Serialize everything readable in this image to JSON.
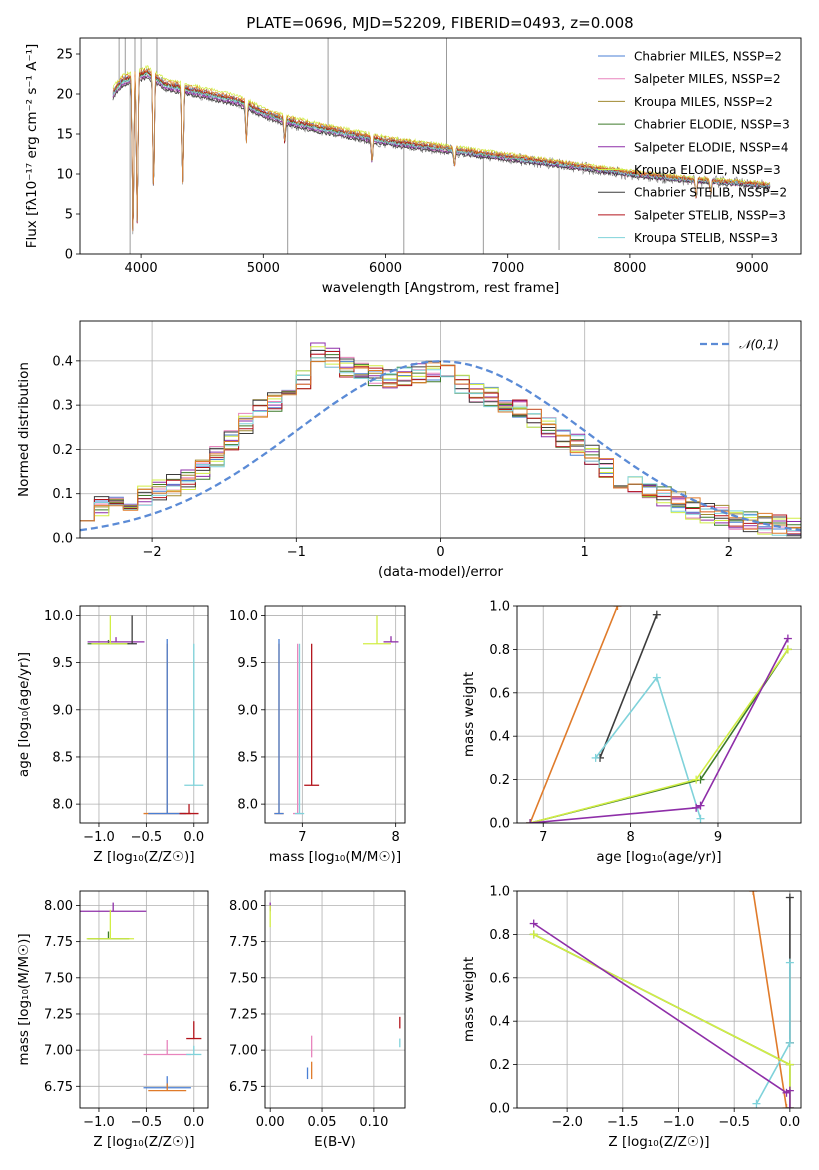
{
  "title": "PLATE=0696, MJD=52209, FIBERID=0493, z=0.008",
  "colors": {
    "Chabrier MILES": "#4a7fd4",
    "Salpeter MILES": "#e884bd",
    "Kroupa MILES": "#a08a30",
    "Chabrier ELODIE": "#3d7a2a",
    "Salpeter ELODIE": "#8e2ea8",
    "Kroupa ELODIE": "#d2ee45",
    "Chabrier STELIB": "#3c3c3c",
    "Salpeter STELIB": "#b3141c",
    "Kroupa STELIB": "#7fd2da",
    "data": "#808080",
    "orange": "#e07b2a",
    "gaussian": "#5b8bd6"
  },
  "chart_data": [
    {
      "id": "spectrum",
      "type": "line",
      "xlabel": "wavelength [Angstrom, rest frame]",
      "ylabel": "Flux [fλ10⁻¹⁷ erg cm⁻² s⁻¹ A⁻¹]",
      "xlim": [
        3500,
        9400
      ],
      "ylim": [
        0,
        27
      ],
      "xticks": [
        4000,
        5000,
        6000,
        7000,
        8000,
        9000
      ],
      "yticks": [
        0,
        5,
        10,
        15,
        20,
        25
      ],
      "legend_position": "top-right",
      "legend": [
        {
          "label": "Chabrier MILES, NSSP=2",
          "color": "#4a7fd4"
        },
        {
          "label": "Salpeter MILES, NSSP=2",
          "color": "#e884bd"
        },
        {
          "label": "Kroupa MILES, NSSP=2",
          "color": "#a08a30"
        },
        {
          "label": "Chabrier ELODIE, NSSP=3",
          "color": "#3d7a2a"
        },
        {
          "label": "Salpeter ELODIE, NSSP=4",
          "color": "#8e2ea8"
        },
        {
          "label": "Kroupa ELODIE, NSSP=3",
          "color": "#d2ee45"
        },
        {
          "label": "Chabrier STELIB, NSSP=2",
          "color": "#3c3c3c"
        },
        {
          "label": "Salpeter STELIB, NSSP=3",
          "color": "#b3141c"
        },
        {
          "label": "Kroupa STELIB, NSSP=3",
          "color": "#7fd2da"
        }
      ],
      "continuum": [
        [
          3770,
          20
        ],
        [
          3850,
          21.5
        ],
        [
          3950,
          22
        ],
        [
          4050,
          22.5
        ],
        [
          4200,
          21
        ],
        [
          4500,
          20
        ],
        [
          4800,
          19
        ],
        [
          5000,
          17.5
        ],
        [
          5200,
          16.5
        ],
        [
          5500,
          15.5
        ],
        [
          6000,
          14
        ],
        [
          6500,
          13
        ],
        [
          7000,
          12
        ],
        [
          7500,
          11
        ],
        [
          8000,
          10
        ],
        [
          8500,
          9.2
        ],
        [
          9000,
          8.7
        ],
        [
          9150,
          8.5
        ]
      ],
      "absorption_dips": [
        [
          3934,
          2
        ],
        [
          3968,
          4
        ],
        [
          4102,
          8
        ],
        [
          4340,
          9
        ],
        [
          4861,
          14
        ],
        [
          5175,
          14
        ],
        [
          5890,
          11.5
        ],
        [
          6563,
          11
        ],
        [
          8542,
          7
        ],
        [
          8662,
          7.5
        ]
      ],
      "spikes": [
        [
          3820,
          27
        ],
        [
          3870,
          27
        ],
        [
          3910,
          0
        ],
        [
          3950,
          27
        ],
        [
          4000,
          27
        ],
        [
          4130,
          27
        ],
        [
          5200,
          0
        ],
        [
          5530,
          27
        ],
        [
          6150,
          0
        ],
        [
          6500,
          27
        ],
        [
          6800,
          0
        ],
        [
          7420,
          0.5
        ]
      ]
    },
    {
      "id": "residuals",
      "type": "line",
      "xlabel": "(data-model)/error",
      "ylabel": "Normed distribution",
      "xlim": [
        -2.5,
        2.5
      ],
      "ylim": [
        0,
        0.49
      ],
      "xticks": [
        -2,
        -1,
        0,
        1,
        2
      ],
      "yticks": [
        0.0,
        0.1,
        0.2,
        0.3,
        0.4
      ],
      "legend": [
        {
          "label": "𝒩(0,1)",
          "color": "#5b8bd6",
          "style": "dashed"
        }
      ],
      "legend_position": "top-right",
      "gaussian": {
        "mu": 0,
        "sigma": 1
      },
      "histogram_shape": [
        [
          -2.5,
          0.06
        ],
        [
          -2.2,
          0.08
        ],
        [
          -2.0,
          0.1
        ],
        [
          -1.7,
          0.14
        ],
        [
          -1.5,
          0.2
        ],
        [
          -1.3,
          0.28
        ],
        [
          -1.0,
          0.33
        ],
        [
          -0.85,
          0.42
        ],
        [
          -0.6,
          0.38
        ],
        [
          -0.4,
          0.36
        ],
        [
          -0.2,
          0.37
        ],
        [
          0.0,
          0.38
        ],
        [
          0.2,
          0.33
        ],
        [
          0.5,
          0.3
        ],
        [
          0.8,
          0.24
        ],
        [
          1.0,
          0.2
        ],
        [
          1.2,
          0.14
        ],
        [
          1.5,
          0.1
        ],
        [
          1.8,
          0.06
        ],
        [
          2.1,
          0.04
        ],
        [
          2.5,
          0.02
        ]
      ]
    },
    {
      "id": "age_vs_Z",
      "type": "scatter",
      "xlabel": "Z [log₁₀(Z/Z☉)]",
      "ylabel": "age  [log₁₀(age/yr)]",
      "xlim": [
        -1.2,
        0.15
      ],
      "ylim": [
        7.8,
        10.1
      ],
      "xticks": [
        -1.0,
        -0.5,
        0.0
      ],
      "yticks": [
        8.0,
        8.5,
        9.0,
        9.5,
        10.0
      ],
      "points": [
        {
          "x": -0.9,
          "y": 9.7,
          "color": "#3d7a2a",
          "xerr": 0.22,
          "yerr": 0.04
        },
        {
          "x": -0.82,
          "y": 9.72,
          "color": "#8e2ea8",
          "xerr": 0.3,
          "yerr": 0.05
        },
        {
          "x": -0.88,
          "y": 9.7,
          "color": "#d2ee45",
          "xerr": 0.2,
          "yerr": 0.3
        },
        {
          "x": -0.65,
          "y": 9.7,
          "color": "#3c3c3c",
          "xerr": 0.05,
          "yerr": 0.3
        },
        {
          "x": -0.28,
          "y": 7.9,
          "color": "#e07b2a",
          "xerr": 0.25,
          "yerr": 1.8
        },
        {
          "x": -0.28,
          "y": 7.9,
          "color": "#4a7fd4",
          "xerr": 0.2,
          "yerr": 1.85
        },
        {
          "x": 0.0,
          "y": 8.2,
          "color": "#7fd2da",
          "xerr": 0.1,
          "yerr": 1.5
        },
        {
          "x": -0.05,
          "y": 7.9,
          "color": "#b3141c",
          "xerr": 0.1,
          "yerr": 0.1
        }
      ]
    },
    {
      "id": "age_vs_mass",
      "type": "scatter",
      "xlabel": "mass [log₁₀(M/M☉)]",
      "ylabel": "",
      "xlim": [
        6.6,
        8.1
      ],
      "ylim": [
        7.8,
        10.1
      ],
      "xticks": [
        7,
        8
      ],
      "yticks": [
        8.0,
        8.5,
        9.0,
        9.5,
        10.0
      ],
      "points": [
        {
          "x": 6.75,
          "y": 7.9,
          "color": "#e07b2a",
          "xerr": 0.05,
          "yerr": 1.8
        },
        {
          "x": 6.75,
          "y": 7.9,
          "color": "#4a7fd4",
          "xerr": 0.05,
          "yerr": 1.85
        },
        {
          "x": 6.95,
          "y": 7.9,
          "color": "#e884bd",
          "xerr": 0.05,
          "yerr": 1.8
        },
        {
          "x": 6.97,
          "y": 7.9,
          "color": "#7fd2da",
          "xerr": 0.05,
          "yerr": 1.8
        },
        {
          "x": 7.1,
          "y": 8.2,
          "color": "#b3141c",
          "xerr": 0.08,
          "yerr": 1.5
        },
        {
          "x": 7.8,
          "y": 9.7,
          "color": "#d2ee45",
          "xerr": 0.15,
          "yerr": 0.3
        },
        {
          "x": 7.95,
          "y": 9.72,
          "color": "#8e2ea8",
          "xerr": 0.08,
          "yerr": 0.06
        }
      ]
    },
    {
      "id": "massweight_vs_age",
      "type": "line",
      "xlabel": "age  [log₁₀(age/yr)]",
      "ylabel": "mass weight",
      "xlim": [
        6.7,
        9.95
      ],
      "ylim": [
        0.0,
        1.0
      ],
      "xticks": [
        7,
        8,
        9
      ],
      "yticks": [
        0.0,
        0.2,
        0.4,
        0.6,
        0.8,
        1.0
      ],
      "series": [
        {
          "color": "#e07b2a",
          "x": [
            6.85,
            7.85
          ],
          "y": [
            0.0,
            1.0
          ]
        },
        {
          "color": "#3c3c3c",
          "x": [
            7.65,
            8.3
          ],
          "y": [
            0.3,
            0.96
          ]
        },
        {
          "color": "#7fd2da",
          "x": [
            7.6,
            8.3,
            8.8
          ],
          "y": [
            0.3,
            0.67,
            0.02
          ]
        },
        {
          "color": "#3d7a2a",
          "x": [
            6.85,
            8.8,
            9.8
          ],
          "y": [
            0.0,
            0.2,
            0.8
          ]
        },
        {
          "color": "#d2ee45",
          "x": [
            6.85,
            8.75,
            9.8
          ],
          "y": [
            0.0,
            0.2,
            0.8
          ]
        },
        {
          "color": "#8e2ea8",
          "x": [
            6.85,
            8.75,
            8.8,
            9.8
          ],
          "y": [
            0.0,
            0.07,
            0.08,
            0.85
          ]
        }
      ]
    },
    {
      "id": "mass_vs_Z",
      "type": "scatter",
      "xlabel": "Z [log₁₀(Z/Z☉)]",
      "ylabel": "mass [log₁₀(M/M☉)]",
      "xlim": [
        -1.2,
        0.15
      ],
      "ylim": [
        6.6,
        8.1
      ],
      "xticks": [
        -1.0,
        -0.5,
        0.0
      ],
      "yticks": [
        6.75,
        7.0,
        7.25,
        7.5,
        7.75,
        8.0
      ],
      "points": [
        {
          "x": -0.85,
          "y": 7.96,
          "color": "#8e2ea8",
          "xerr": 0.35,
          "yerr": 0.06
        },
        {
          "x": -0.9,
          "y": 7.77,
          "color": "#3d7a2a",
          "xerr": 0.22,
          "yerr": 0.05
        },
        {
          "x": -0.88,
          "y": 7.77,
          "color": "#d2ee45",
          "xerr": 0.25,
          "yerr": 0.2
        },
        {
          "x": -0.28,
          "y": 6.97,
          "color": "#e884bd",
          "xerr": 0.25,
          "yerr": 0.1
        },
        {
          "x": -0.28,
          "y": 6.74,
          "color": "#4a7fd4",
          "xerr": 0.25,
          "yerr": 0.08
        },
        {
          "x": -0.28,
          "y": 6.72,
          "color": "#e07b2a",
          "xerr": 0.2,
          "yerr": 0.05
        },
        {
          "x": 0.0,
          "y": 7.08,
          "color": "#b3141c",
          "xerr": 0.08,
          "yerr": 0.12
        },
        {
          "x": 0.0,
          "y": 6.97,
          "color": "#7fd2da",
          "xerr": 0.08,
          "yerr": 0.06
        }
      ]
    },
    {
      "id": "mass_vs_EBV",
      "type": "scatter",
      "xlabel": "E(B-V)",
      "ylabel": "",
      "xlim": [
        -0.005,
        0.13
      ],
      "ylim": [
        6.6,
        8.1
      ],
      "xticks": [
        0.0,
        0.05,
        0.1
      ],
      "yticks": [
        6.75,
        7.0,
        7.25,
        7.5,
        7.75,
        8.0
      ],
      "points": [
        {
          "x": 0.0,
          "y": 7.96,
          "color": "#8e2ea8",
          "xerr": 0.0,
          "yerr": 0.06
        },
        {
          "x": 0.0,
          "y": 7.85,
          "color": "#d2ee45",
          "xerr": 0.0,
          "yerr": 0.15
        },
        {
          "x": 0.036,
          "y": 6.8,
          "color": "#4a7fd4",
          "xerr": 0.0,
          "yerr": 0.08
        },
        {
          "x": 0.04,
          "y": 6.95,
          "color": "#e884bd",
          "xerr": 0.0,
          "yerr": 0.15
        },
        {
          "x": 0.04,
          "y": 6.8,
          "color": "#e07b2a",
          "xerr": 0.0,
          "yerr": 0.12
        },
        {
          "x": 0.125,
          "y": 7.15,
          "color": "#b3141c",
          "xerr": 0.0,
          "yerr": 0.08
        },
        {
          "x": 0.125,
          "y": 7.02,
          "color": "#7fd2da",
          "xerr": 0.0,
          "yerr": 0.06
        }
      ]
    },
    {
      "id": "massweight_vs_Z",
      "type": "line",
      "xlabel": "Z [log₁₀(Z/Z☉)]",
      "ylabel": "mass weight",
      "xlim": [
        -2.45,
        0.1
      ],
      "ylim": [
        0.0,
        1.0
      ],
      "xticks": [
        -2.0,
        -1.5,
        -1.0,
        -0.5,
        0.0
      ],
      "yticks": [
        0.0,
        0.2,
        0.4,
        0.6,
        0.8,
        1.0
      ],
      "series": [
        {
          "color": "#e07b2a",
          "x": [
            -0.33,
            -0.03
          ],
          "y": [
            1.0,
            0.0
          ]
        },
        {
          "color": "#3c3c3c",
          "x": [
            0.0,
            0.0
          ],
          "y": [
            0.3,
            0.97
          ]
        },
        {
          "color": "#7fd2da",
          "x": [
            -0.3,
            0.0,
            0.0
          ],
          "y": [
            0.02,
            0.3,
            0.67
          ]
        },
        {
          "color": "#3d7a2a",
          "x": [
            -2.3,
            0.0,
            0.0
          ],
          "y": [
            0.8,
            0.2,
            0.0
          ]
        },
        {
          "color": "#d2ee45",
          "x": [
            -2.3,
            0.0,
            0.0
          ],
          "y": [
            0.8,
            0.2,
            0.0
          ]
        },
        {
          "color": "#8e2ea8",
          "x": [
            -2.3,
            -0.03,
            0.0,
            0.0
          ],
          "y": [
            0.85,
            0.07,
            0.08,
            0.0
          ]
        }
      ]
    }
  ]
}
